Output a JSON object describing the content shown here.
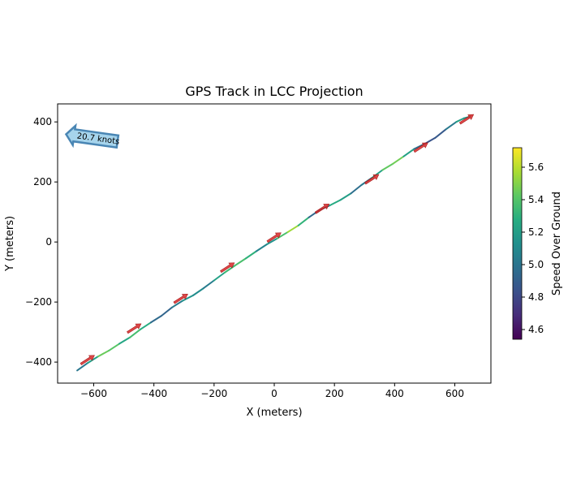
{
  "chart_data": {
    "type": "line",
    "title": "GPS Track in LCC Projection",
    "xlabel": "X (meters)",
    "ylabel": "Y (meters)",
    "xlim": [
      -720,
      720
    ],
    "ylim": [
      -470,
      460
    ],
    "x_ticks": [
      -600,
      -400,
      -200,
      0,
      200,
      400,
      600
    ],
    "y_ticks": [
      -400,
      -200,
      0,
      200,
      400
    ],
    "colorbar": {
      "label": "Speed Over Ground",
      "range": [
        4.54,
        5.72
      ],
      "ticks": [
        4.6,
        4.8,
        5.0,
        5.2,
        5.4,
        5.6
      ],
      "colormap": "viridis"
    },
    "annotation": {
      "text": "20.7 knots",
      "x": -620,
      "y": 345,
      "color": "#a6d4ec",
      "edge_color": "#4a86b4"
    },
    "track": {
      "x": [
        -655,
        -620,
        -585,
        -550,
        -515,
        -480,
        -445,
        -410,
        -375,
        -340,
        -305,
        -270,
        -235,
        -200,
        -165,
        -130,
        -95,
        -60,
        -25,
        10,
        45,
        80,
        115,
        150,
        185,
        220,
        255,
        290,
        325,
        360,
        395,
        430,
        465,
        500,
        535,
        570,
        605,
        630,
        652
      ],
      "y": [
        -428,
        -403,
        -381,
        -362,
        -339,
        -318,
        -291,
        -268,
        -246,
        -218,
        -196,
        -178,
        -154,
        -128,
        -102,
        -78,
        -55,
        -31,
        -8,
        12,
        33,
        55,
        82,
        106,
        122,
        140,
        162,
        190,
        214,
        240,
        261,
        285,
        310,
        327,
        347,
        375,
        400,
        412,
        418
      ],
      "speed": [
        5.0,
        5.02,
        5.38,
        5.52,
        5.3,
        5.18,
        5.55,
        5.0,
        4.9,
        4.95,
        5.1,
        5.2,
        5.02,
        5.05,
        5.38,
        5.3,
        5.45,
        5.15,
        5.0,
        5.28,
        5.48,
        5.62,
        5.0,
        4.88,
        5.12,
        5.4,
        5.0,
        4.95,
        5.1,
        5.32,
        5.55,
        5.38,
        5.05,
        4.9,
        4.8,
        4.95,
        5.1,
        5.3,
        5.05
      ]
    },
    "heading_arrows": {
      "color": "#d62728",
      "points": [
        {
          "x": -620,
          "y": -392
        },
        {
          "x": -465,
          "y": -287
        },
        {
          "x": -310,
          "y": -188
        },
        {
          "x": -155,
          "y": -84
        },
        {
          "x": 0,
          "y": 16
        },
        {
          "x": 160,
          "y": 112
        },
        {
          "x": 325,
          "y": 210
        },
        {
          "x": 488,
          "y": 316
        },
        {
          "x": 640,
          "y": 410
        }
      ]
    }
  }
}
